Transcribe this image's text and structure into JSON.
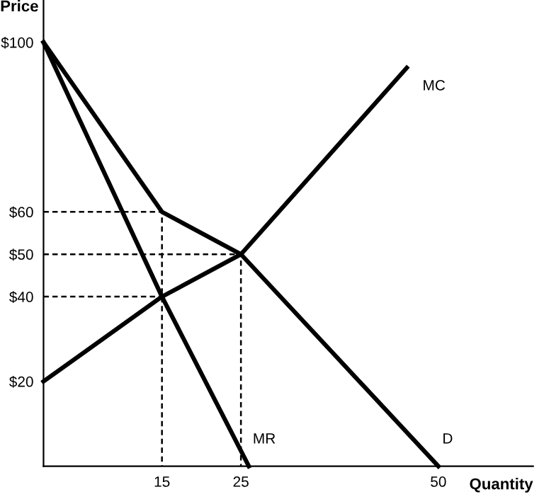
{
  "chart_data": {
    "type": "line",
    "xlabel": "Quantity",
    "ylabel": "Price",
    "xlim": [
      0,
      62
    ],
    "ylim": [
      0,
      110
    ],
    "xticks": [
      15,
      25,
      50
    ],
    "yticks": [
      {
        "value": 20,
        "label": "$20"
      },
      {
        "value": 40,
        "label": "$40"
      },
      {
        "value": 50,
        "label": "$50"
      },
      {
        "value": 60,
        "label": "$60"
      },
      {
        "value": 100,
        "label": "$100"
      }
    ],
    "grid": false,
    "legend": false,
    "marker": "none",
    "series": [
      {
        "name": "MC",
        "color": "#000000",
        "x": [
          0,
          15,
          25,
          46
        ],
        "values": [
          20,
          40,
          50,
          94
        ]
      },
      {
        "name": "D",
        "color": "#000000",
        "x": [
          0,
          15,
          25,
          50
        ],
        "values": [
          100,
          60,
          50,
          0
        ]
      },
      {
        "name": "MR",
        "color": "#000000",
        "x": [
          0,
          15,
          26
        ],
        "values": [
          100,
          40,
          0
        ]
      },
      {
        "color": "#000000",
        "line_style": "dashed",
        "x": [
          0,
          15,
          15
        ],
        "values": [
          60,
          60,
          0
        ]
      },
      {
        "color": "#000000",
        "line_style": "dashed",
        "x": [
          0,
          25,
          25
        ],
        "values": [
          50,
          50,
          0
        ]
      },
      {
        "color": "#000000",
        "line_style": "dashed",
        "x": [
          0,
          15
        ],
        "values": [
          40,
          40
        ]
      }
    ]
  }
}
